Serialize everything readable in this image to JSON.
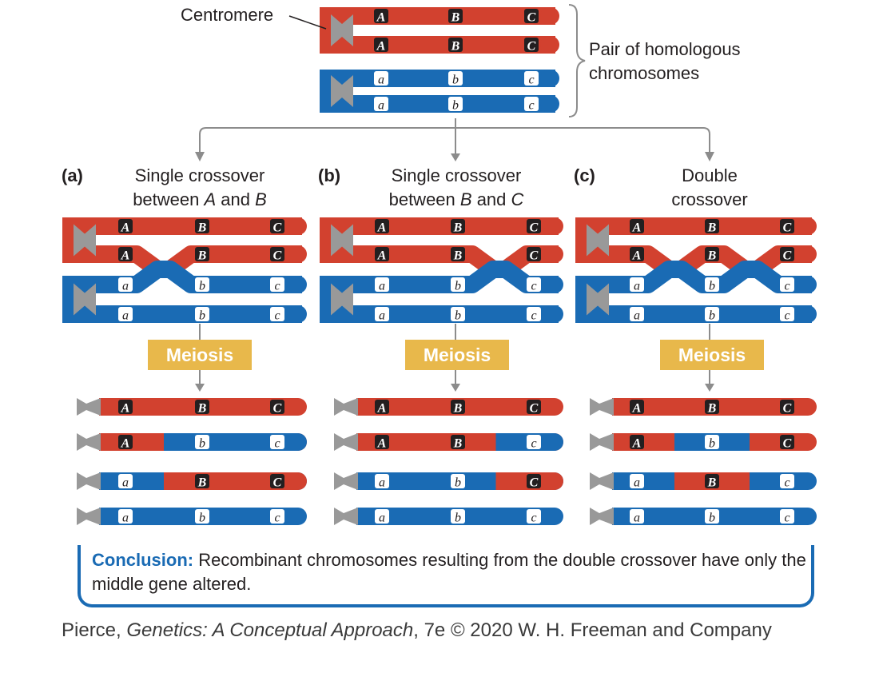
{
  "colors": {
    "paternal": "#d2412f",
    "maternal": "#1a6bb4",
    "centromere": "#999999",
    "arrow": "#8c8c8c",
    "meiosis_box": "#e8b84b",
    "conclusion_accent": "#1a6bb4"
  },
  "top": {
    "centromere_label": "Centromere",
    "homolog_label_line1": "Pair of homologous",
    "homolog_label_line2": "chromosomes"
  },
  "genes": {
    "upper": [
      "A",
      "B",
      "C"
    ],
    "lower": [
      "a",
      "b",
      "c"
    ]
  },
  "panels": [
    {
      "letter": "(a)",
      "title_line1": "Single crossover",
      "title_pre": "between ",
      "title_gene1": "A",
      "title_mid": " and ",
      "title_gene2": "B",
      "meiosis": "Meiosis",
      "products": [
        [
          "A",
          "B",
          "C"
        ],
        [
          "A",
          "b",
          "c"
        ],
        [
          "a",
          "B",
          "C"
        ],
        [
          "a",
          "b",
          "c"
        ]
      ]
    },
    {
      "letter": "(b)",
      "title_line1": "Single crossover",
      "title_pre": "between ",
      "title_gene1": "B",
      "title_mid": " and ",
      "title_gene2": "C",
      "meiosis": "Meiosis",
      "products": [
        [
          "A",
          "B",
          "C"
        ],
        [
          "A",
          "B",
          "c"
        ],
        [
          "a",
          "b",
          "C"
        ],
        [
          "a",
          "b",
          "c"
        ]
      ]
    },
    {
      "letter": "(c)",
      "title_line1": "Double",
      "title_line2": "crossover",
      "meiosis": "Meiosis",
      "products": [
        [
          "A",
          "B",
          "C"
        ],
        [
          "A",
          "b",
          "C"
        ],
        [
          "a",
          "B",
          "c"
        ],
        [
          "a",
          "b",
          "c"
        ]
      ]
    }
  ],
  "conclusion": {
    "label": "Conclusion:",
    "text": " Recombinant chromosomes resulting from the double crossover have only the middle gene altered."
  },
  "credit": {
    "author": "Pierce, ",
    "title": "Genetics: A Conceptual Approach",
    "rest": ", 7e © 2020 W. H. Freeman and Company"
  }
}
